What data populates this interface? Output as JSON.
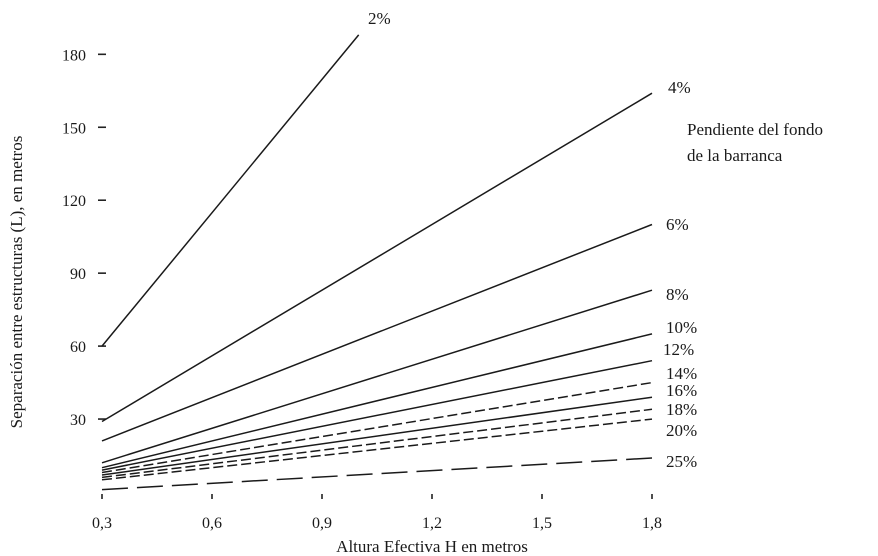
{
  "chart_data": {
    "type": "line",
    "title": "",
    "xlabel": "Altura Efectiva H en metros",
    "ylabel": "Separación entre estructuras (L), en metros",
    "legend_note": [
      "Pendiente del fondo",
      "de la barranca"
    ],
    "xlim": [
      0.3,
      1.8
    ],
    "ylim": [
      0,
      190
    ],
    "x_ticks": [
      "0,3",
      "0,6",
      "0,9",
      "1,2",
      "1,5",
      "1,8"
    ],
    "x_tick_values": [
      0.3,
      0.6,
      0.9,
      1.2,
      1.5,
      1.8
    ],
    "y_ticks": [
      "30",
      "60",
      "90",
      "120",
      "150",
      "180"
    ],
    "y_tick_values": [
      30,
      60,
      90,
      120,
      150,
      180
    ],
    "grid": false,
    "series": [
      {
        "name": "2%",
        "x": [
          0.3,
          1.0
        ],
        "y": [
          60,
          188
        ],
        "dash": "solid"
      },
      {
        "name": "4%",
        "x": [
          0.3,
          1.8
        ],
        "y": [
          29,
          164
        ],
        "dash": "solid"
      },
      {
        "name": "6%",
        "x": [
          0.3,
          1.8
        ],
        "y": [
          21,
          110
        ],
        "dash": "solid"
      },
      {
        "name": "8%",
        "x": [
          0.3,
          1.8
        ],
        "y": [
          12,
          83
        ],
        "dash": "solid"
      },
      {
        "name": "10%",
        "x": [
          0.3,
          1.8
        ],
        "y": [
          10,
          65
        ],
        "dash": "solid"
      },
      {
        "name": "12%",
        "x": [
          0.3,
          1.8
        ],
        "y": [
          9,
          54
        ],
        "dash": "solid"
      },
      {
        "name": "14%",
        "x": [
          0.3,
          1.8
        ],
        "y": [
          8,
          45
        ],
        "dash": "dashed"
      },
      {
        "name": "16%",
        "x": [
          0.3,
          1.8
        ],
        "y": [
          7,
          39
        ],
        "dash": "solid"
      },
      {
        "name": "18%",
        "x": [
          0.3,
          1.8
        ],
        "y": [
          6,
          34
        ],
        "dash": "dashed"
      },
      {
        "name": "20%",
        "x": [
          0.3,
          1.8
        ],
        "y": [
          5,
          30
        ],
        "dash": "dashed"
      },
      {
        "name": "25%",
        "x": [
          0.3,
          1.8
        ],
        "y": [
          1,
          14
        ],
        "dash": "longdash"
      }
    ]
  }
}
